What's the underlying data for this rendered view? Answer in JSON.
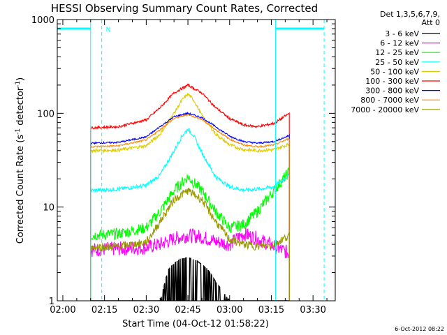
{
  "chart_data": {
    "type": "line",
    "title": "HESSI Observing Summary Count Rates, Corrected",
    "xlabel": "Start Time (04-Oct-12 01:58:22)",
    "ylabel_main": "Corrected Count Rate (s",
    "ylabel_sup1": "-1",
    "ylabel_mid": " detector",
    "ylabel_sup2": "-1",
    "ylabel_end": ")",
    "yscale": "log",
    "ylim": [
      1,
      1000
    ],
    "xlim_minutes": [
      118,
      218
    ],
    "x_ticks": [
      {
        "label": "02:00",
        "minute": 120
      },
      {
        "label": "02:15",
        "minute": 135
      },
      {
        "label": "02:30",
        "minute": 150
      },
      {
        "label": "02:45",
        "minute": 165
      },
      {
        "label": "03:00",
        "minute": 180
      },
      {
        "label": "03:15",
        "minute": 195
      },
      {
        "label": "03:30",
        "minute": 210
      }
    ],
    "y_ticks": [
      {
        "label": "1",
        "value": 1
      },
      {
        "label": "10",
        "value": 10
      },
      {
        "label": "100",
        "value": 100
      },
      {
        "label": "1000",
        "value": 1000
      }
    ],
    "legend_header": [
      "Det 1,3,5,6,7,9,",
      "Att 0"
    ],
    "legend_position": "right",
    "data_start_minute": 130,
    "data_end_minute": 201.5,
    "night_marker": {
      "label": "N",
      "spans": [
        [
          118,
          130
        ],
        [
          196.5,
          214
        ]
      ],
      "dashed_lines_minute": [
        134,
        214
      ],
      "solid_lines_minute": [
        130,
        196.5
      ],
      "level": 800,
      "color": "#00ffff"
    },
    "series": [
      {
        "name": "3 - 6 keV",
        "color": "#000000",
        "x": [
          130,
          150,
          155,
          158,
          162,
          165,
          168,
          172,
          175,
          180,
          185,
          190,
          196,
          201.5
        ],
        "y": [
          1,
          1,
          1,
          2.2,
          2.8,
          2.9,
          2.7,
          2.2,
          1.6,
          1,
          1,
          1,
          1,
          1
        ]
      },
      {
        "name": "6 - 12 keV",
        "color": "#ff00ff",
        "x": [
          130,
          140,
          150,
          155,
          160,
          165,
          170,
          175,
          180,
          185,
          190,
          196,
          201.5
        ],
        "y": [
          3.5,
          3.6,
          3.7,
          4.0,
          4.6,
          5.0,
          4.8,
          4.3,
          4.0,
          5.2,
          4.6,
          3.8,
          3.2
        ]
      },
      {
        "name": "12 - 25 keV",
        "color": "#00ff00",
        "x": [
          130,
          140,
          150,
          155,
          160,
          165,
          170,
          175,
          180,
          185,
          190,
          196,
          201.5
        ],
        "y": [
          5,
          5.2,
          6,
          9,
          15,
          21,
          15,
          9,
          6,
          6.5,
          9,
          15,
          24
        ]
      },
      {
        "name": "25 - 50 keV",
        "color": "#00ffff",
        "x": [
          130,
          140,
          150,
          155,
          160,
          163,
          165,
          167,
          170,
          175,
          180,
          185,
          190,
          196,
          201.5
        ],
        "y": [
          15,
          15.5,
          17,
          22,
          40,
          58,
          68,
          58,
          38,
          21,
          16.5,
          15.2,
          15.5,
          16.5,
          22
        ]
      },
      {
        "name": "50 - 100 keV",
        "color": "#ddcc00",
        "x": [
          130,
          140,
          150,
          155,
          160,
          163,
          165,
          167,
          170,
          175,
          180,
          185,
          190,
          196,
          201.5
        ],
        "y": [
          40,
          40.5,
          45,
          60,
          100,
          140,
          160,
          140,
          95,
          60,
          46,
          41,
          40,
          41,
          47
        ]
      },
      {
        "name": "100 - 300 keV",
        "color": "#ff0000",
        "x": [
          130,
          140,
          150,
          155,
          160,
          165,
          170,
          175,
          180,
          185,
          190,
          196,
          201.5
        ],
        "y": [
          70,
          72,
          85,
          115,
          165,
          200,
          165,
          115,
          88,
          75,
          72,
          78,
          100
        ]
      },
      {
        "name": "300 - 800 keV",
        "color": "#0000ff",
        "x": [
          130,
          140,
          150,
          155,
          160,
          165,
          170,
          175,
          180,
          185,
          190,
          196,
          201.5
        ],
        "y": [
          48,
          49,
          56,
          72,
          92,
          100,
          90,
          72,
          57,
          50,
          48,
          50,
          58
        ]
      },
      {
        "name": "800 - 7000 keV",
        "color": "#ff8800",
        "x": [
          130,
          140,
          150,
          155,
          160,
          165,
          170,
          175,
          180,
          185,
          190,
          196,
          201.5
        ],
        "y": [
          44,
          45,
          52,
          67,
          88,
          97,
          86,
          67,
          53,
          46,
          44,
          46,
          54
        ]
      },
      {
        "name": "7000 - 20000 keV",
        "color": "#999900",
        "x": [
          130,
          140,
          150,
          155,
          160,
          165,
          170,
          175,
          180,
          185,
          190,
          196,
          201.5
        ],
        "y": [
          3.7,
          3.8,
          4.2,
          7,
          12,
          15,
          12,
          7,
          4.5,
          4.0,
          3.8,
          4.0,
          5
        ]
      }
    ]
  },
  "timestamp": "6-Oct-2012 08:22"
}
